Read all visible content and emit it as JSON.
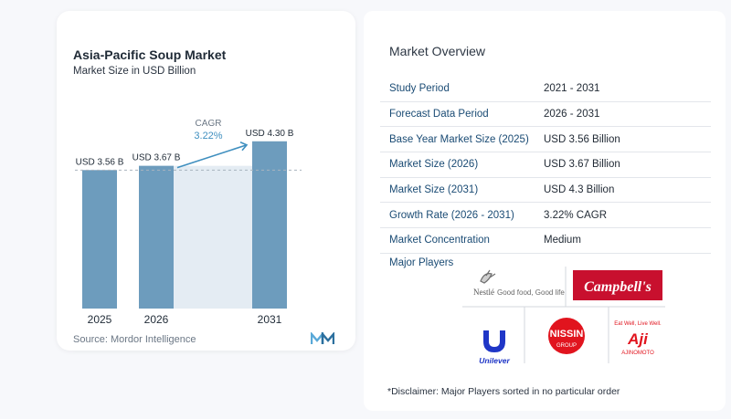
{
  "chart_data": {
    "type": "bar",
    "title": "Asia-Pacific Soup Market",
    "subtitle": "Market Size in USD Billion",
    "categories": [
      "2025",
      "2026",
      "2031"
    ],
    "values": [
      3.56,
      3.67,
      4.3
    ],
    "data_labels": [
      "USD 3.56 B",
      "USD 3.67 B",
      "USD 4.30 B"
    ],
    "cagr_label": "CAGR",
    "cagr_value": "3.22%",
    "ylim": [
      0,
      4.6
    ],
    "bar_color": "#6d9cbd",
    "gap_shade_color": "#e4ecf3",
    "accent_color": "#3f8fbf",
    "source": "Source:  Mordor Intelligence"
  },
  "overview": {
    "title": "Market Overview",
    "rows": [
      {
        "label": "Study Period",
        "value": "2021 - 2031"
      },
      {
        "label": "Forecast Data Period",
        "value": "2026 - 2031"
      },
      {
        "label": "Base Year Market Size (2025)",
        "value": "USD 3.56 Billion"
      },
      {
        "label": "Market Size (2026)",
        "value": "USD 3.67 Billion"
      },
      {
        "label": "Market Size (2031)",
        "value": "USD 4.3 Billion"
      },
      {
        "label": "Growth Rate (2026 - 2031)",
        "value": "3.22% CAGR"
      },
      {
        "label": "Market Concentration",
        "value": "Medium"
      }
    ],
    "label_color": "#1a4b74"
  },
  "players": {
    "title": "Major Players",
    "logos": {
      "nestle": {
        "name": "Nestlé",
        "tagline": "Good food, Good life"
      },
      "campbells": {
        "name": "Campbell's",
        "color": "#c8102e"
      },
      "unilever": {
        "name": "Unilever",
        "color": "#1f36c7"
      },
      "nissin": {
        "name": "NISSIN",
        "sub": "GROUP",
        "color": "#e1141e"
      },
      "ajinomoto": {
        "top": "Eat Well, Live Well.",
        "mark": "Aji",
        "name": "AJINOMOTO",
        "color": "#e1141e"
      }
    }
  },
  "disclaimer": "*Disclaimer: Major Players sorted in no particular order"
}
